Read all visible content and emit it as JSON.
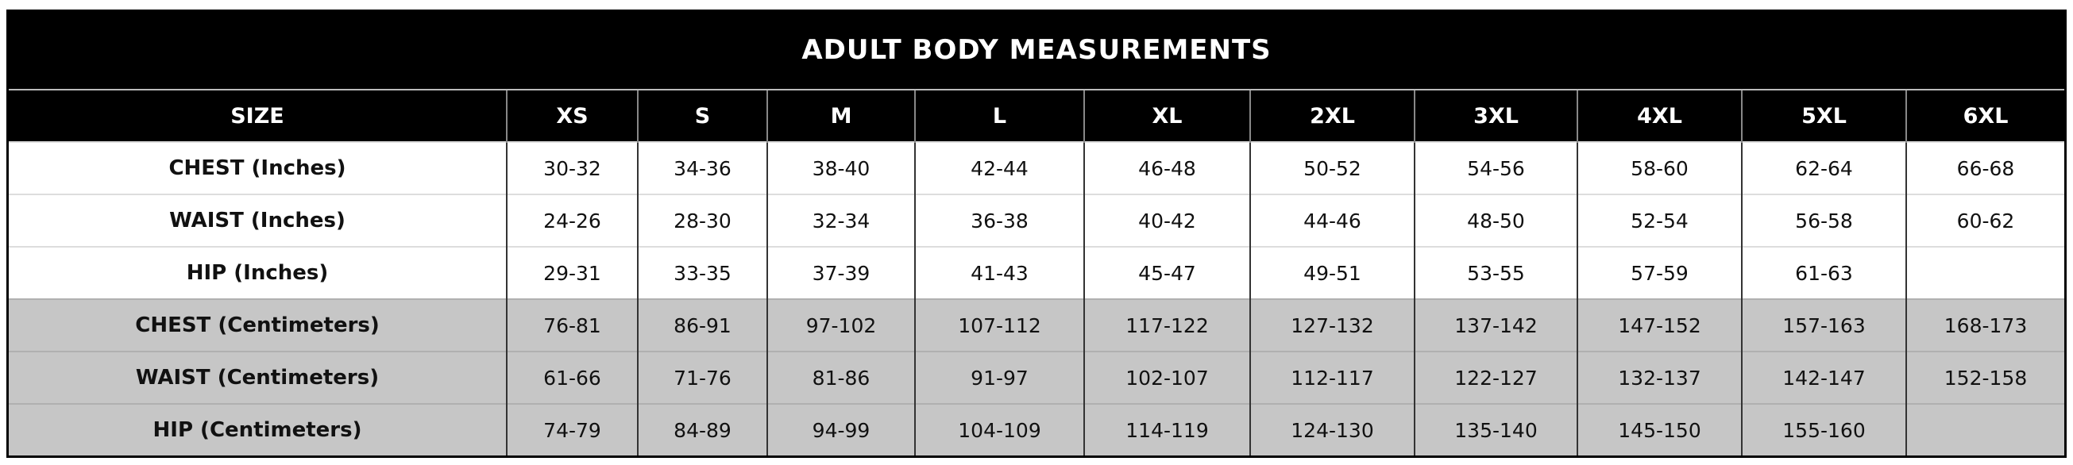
{
  "title": "ADULT BODY MEASUREMENTS",
  "table": {
    "header": [
      "SIZE",
      "XS",
      "S",
      "M",
      "L",
      "XL",
      "2XL",
      "3XL",
      "4XL",
      "5XL",
      "6XL"
    ],
    "rows": [
      [
        "CHEST (Inches)",
        "30-32",
        "34-36",
        "38-40",
        "42-44",
        "46-48",
        "50-52",
        "54-56",
        "58-60",
        "62-64",
        "66-68"
      ],
      [
        "WAIST (Inches)",
        "24-26",
        "28-30",
        "32-34",
        "36-38",
        "40-42",
        "44-46",
        "48-50",
        "52-54",
        "56-58",
        "60-62"
      ],
      [
        "HIP (Inches)",
        "29-31",
        "33-35",
        "37-39",
        "41-43",
        "45-47",
        "49-51",
        "53-55",
        "57-59",
        "61-63",
        null
      ],
      [
        "CHEST (Centimeters)",
        "76-81",
        "86-91",
        "97-102",
        "107-112",
        "117-122",
        "127-132",
        "137-142",
        "147-152",
        "157-163",
        "168-173"
      ],
      [
        "WAIST (Centimeters)",
        "61-66",
        "71-76",
        "81-86",
        "91-97",
        "102-107",
        "112-117",
        "122-127",
        "132-137",
        "142-147",
        "152-158"
      ],
      [
        "HIP (Centimeters)",
        "74-79",
        "84-89",
        "94-99",
        "104-109",
        "114-119",
        "124-130",
        "135-140",
        "145-150",
        "155-160",
        null
      ]
    ]
  }
}
